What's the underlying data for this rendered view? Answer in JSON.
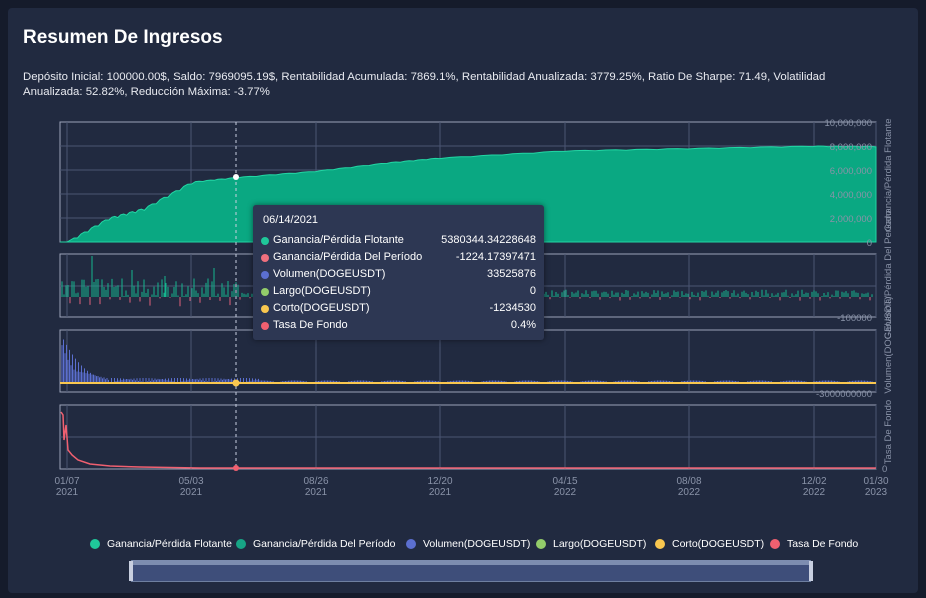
{
  "header": {
    "title": "Resumen De Ingresos",
    "summary": "Depósito Inicial: 100000.00$, Saldo: 7969095.19$, Rentabilidad Acumulada: 7869.1%, Rentabilidad Anualizada: 3779.25%, Ratio De Sharpe: 71.49, Volatilidad Anualizada: 52.82%, Reducción Máxima: -3.77%"
  },
  "axes": {
    "x_ticks": [
      {
        "d": "01/07",
        "y": "2021"
      },
      {
        "d": "05/03",
        "y": "2021"
      },
      {
        "d": "08/26",
        "y": "2021"
      },
      {
        "d": "12/20",
        "y": "2021"
      },
      {
        "d": "04/15",
        "y": "2022"
      },
      {
        "d": "08/08",
        "y": "2022"
      },
      {
        "d": "12/02",
        "y": "2022"
      },
      {
        "d": "01/30",
        "y": "2023"
      }
    ],
    "p1_ticks": [
      "10,000,000",
      "8,000,000",
      "6,000,000",
      "4,000,000",
      "2,000,000",
      "0"
    ],
    "p1_label": "Ganancia/Pérdida Flotante",
    "p2_tick": "-100000",
    "p2_label": "Ganancia/Pérdida Del Período",
    "p3_tick": "-3000000000",
    "p3_label": "Volumen(DOGEUSDT)",
    "p4_tick": "0",
    "p4_label": "Tasa De Fondo"
  },
  "tooltip": {
    "date": "06/14/2021",
    "rows": [
      {
        "label": "Ganancia/Pérdida Flotante",
        "value": "5380344.34228648",
        "color": "#1fc79a"
      },
      {
        "label": "Ganancia/Pérdida Del Período",
        "value": "-1224.17397471",
        "color": "#f0707e"
      },
      {
        "label": "Volumen(DOGEUSDT)",
        "value": "33525876",
        "color": "#5b6fd0"
      },
      {
        "label": "Largo(DOGEUSDT)",
        "value": "0",
        "color": "#93cc6a"
      },
      {
        "label": "Corto(DOGEUSDT)",
        "value": "-1234530",
        "color": "#f9c74f"
      },
      {
        "label": "Tasa De Fondo",
        "value": "0.4%",
        "color": "#f06070"
      }
    ]
  },
  "legend": [
    {
      "label": "Ganancia/Pérdida Flotante",
      "color": "#1fc79a"
    },
    {
      "label": "Ganancia/Pérdida Del Período",
      "color": "#17a586"
    },
    {
      "label": "Volumen(DOGEUSDT)",
      "color": "#5b6fd0"
    },
    {
      "label": "Largo(DOGEUSDT)",
      "color": "#93cc6a"
    },
    {
      "label": "Corto(DOGEUSDT)",
      "color": "#f9c74f"
    },
    {
      "label": "Tasa De Fondo",
      "color": "#f06070"
    }
  ],
  "chart_data": {
    "type": "area",
    "title": "Resumen De Ingresos",
    "x_range": [
      "01/07/2021",
      "01/30/2023"
    ],
    "series": [
      {
        "name": "Ganancia/Pérdida Flotante",
        "x": [
          "01/07/2021",
          "02/15/2021",
          "03/20/2021",
          "05/03/2021",
          "06/14/2021",
          "08/26/2021",
          "11/01/2021",
          "12/20/2021",
          "04/15/2022",
          "08/08/2022",
          "12/02/2022",
          "01/30/2023"
        ],
        "values": [
          0,
          2000000,
          2800000,
          5000000,
          5380344,
          5900000,
          6600000,
          7000000,
          7600000,
          7800000,
          8000000,
          7969095
        ]
      }
    ],
    "ylim": [
      0,
      10000000
    ]
  }
}
